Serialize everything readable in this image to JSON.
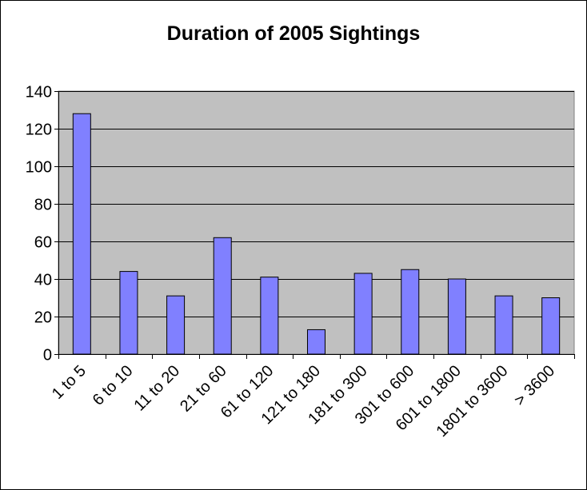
{
  "chart_data": {
    "type": "bar",
    "title": "Duration of 2005 Sightings",
    "xlabel": "",
    "ylabel": "",
    "categories": [
      "1 to 5",
      "6 to 10",
      "11 to 20",
      "21 to 60",
      "61 to 120",
      "121 to 180",
      "181 to 300",
      "301 to 600",
      "601 to 1800",
      "1801 to 3600",
      "> 3600"
    ],
    "values": [
      128,
      44,
      31,
      62,
      41,
      13,
      43,
      45,
      40,
      31,
      30
    ],
    "ylim": [
      0,
      140
    ],
    "yticks": [
      0,
      20,
      40,
      60,
      80,
      100,
      120,
      140
    ],
    "grid": true,
    "legend": "none",
    "colors": {
      "plot_background": "#C0C0C0",
      "bar_fill": "#8080FF",
      "bar_stroke": "#000000",
      "gridline": "#000000"
    }
  }
}
